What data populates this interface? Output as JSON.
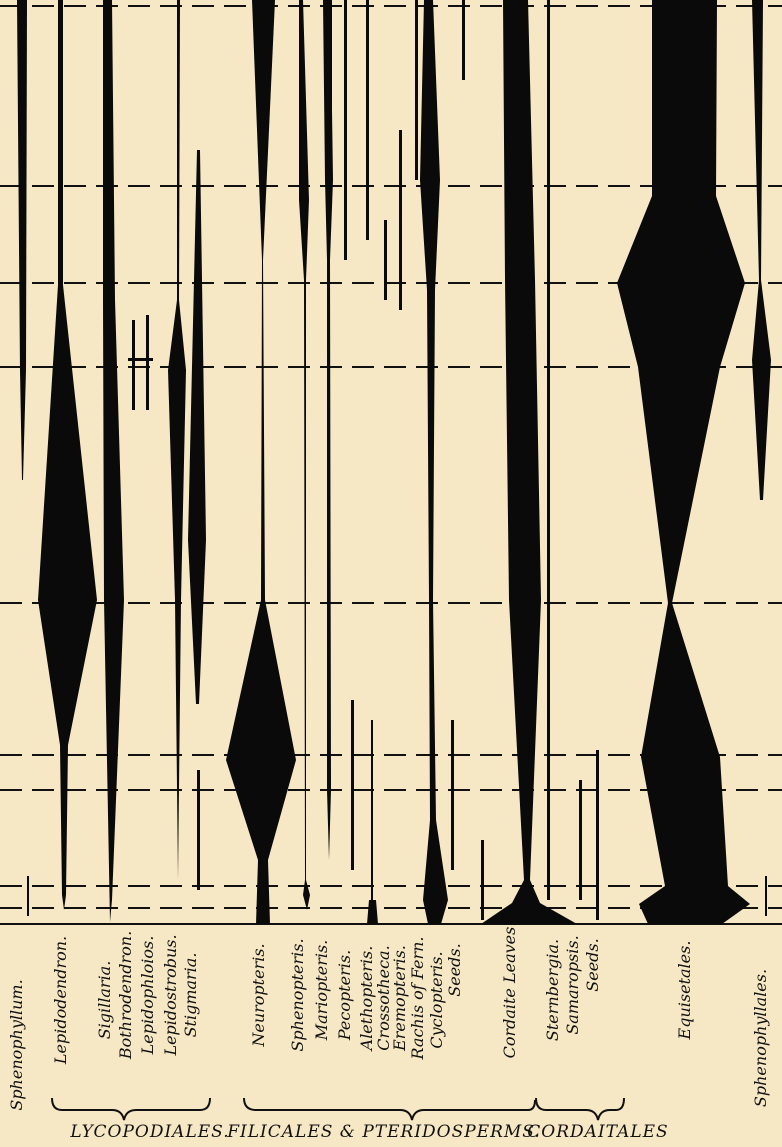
{
  "taxa": [
    {
      "id": "sphenophyllum",
      "label": "Sphenophyllum."
    },
    {
      "id": "lepidodendron",
      "label": "Lepidodendron."
    },
    {
      "id": "sigillaria",
      "label": "Sigillaria."
    },
    {
      "id": "bothrodendron",
      "label": "Bothrodendron."
    },
    {
      "id": "lepidophloios",
      "label": "Lepidophloios."
    },
    {
      "id": "lepidostrobus",
      "label": "Lepidostrobus."
    },
    {
      "id": "stigmaria",
      "label": "Stigmaria."
    },
    {
      "id": "neuropteris",
      "label": "Neuropteris."
    },
    {
      "id": "sphenopteris",
      "label": "Sphenopteris."
    },
    {
      "id": "mariopteris",
      "label": "Mariopteris."
    },
    {
      "id": "pecopteris",
      "label": "Pecopteris."
    },
    {
      "id": "alethopteris",
      "label": "Alethopteris."
    },
    {
      "id": "crossotheca",
      "label": "Crossotheca."
    },
    {
      "id": "eremopteris",
      "label": "Eremopteris."
    },
    {
      "id": "rachis_of_fern",
      "label": "Rachis of Fern."
    },
    {
      "id": "cyclopteris",
      "label": "Cyclopteris."
    },
    {
      "id": "seeds_1",
      "label": "Seeds."
    },
    {
      "id": "cordaite_leaves",
      "label": "Cordaite Leaves."
    },
    {
      "id": "sternbergia",
      "label": "Sternbergia."
    },
    {
      "id": "samaropsis",
      "label": "Samaropsis."
    },
    {
      "id": "seeds_2",
      "label": "Seeds."
    },
    {
      "id": "equisetales",
      "label": "Equisetales."
    },
    {
      "id": "sphenophyllales",
      "label": "Sphenophyllales."
    }
  ],
  "groups": [
    {
      "id": "lycopodiales",
      "label": "LYCOPODIALES."
    },
    {
      "id": "filicales",
      "label": "FILICALES & PTERIDOSPERMS."
    },
    {
      "id": "cordaitales",
      "label": "CORDAITALES"
    }
  ],
  "colors": {
    "paper": "#f6e8c4",
    "ink": "#0a0a0a"
  }
}
